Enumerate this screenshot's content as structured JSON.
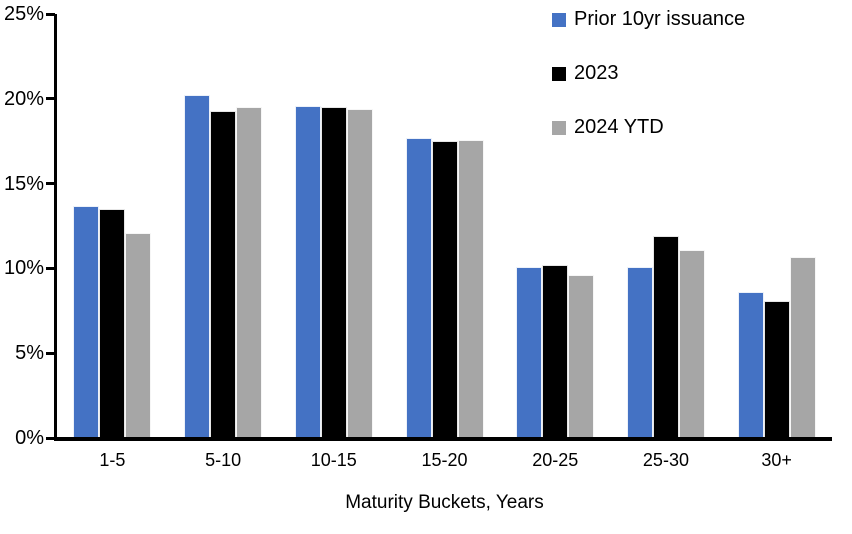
{
  "chart_data": {
    "type": "bar",
    "title": "",
    "xlabel": "Maturity Buckets, Years",
    "ylabel": "",
    "ylim": [
      0,
      25
    ],
    "ytick_step": 5,
    "ytick_labels": [
      "0%",
      "5%",
      "10%",
      "15%",
      "20%",
      "25%"
    ],
    "grid": false,
    "legend_position": "top-right",
    "axis_color": "#000000",
    "background_color": "#ffffff",
    "categories": [
      "1-5",
      "5-10",
      "10-15",
      "15-20",
      "20-25",
      "25-30",
      "30+"
    ],
    "series": [
      {
        "name": "Prior 10yr issuance",
        "color": "#4472C4",
        "values": [
          13.7,
          20.2,
          19.6,
          17.7,
          10.1,
          10.1,
          8.6
        ]
      },
      {
        "name": "2023",
        "color": "#000000",
        "values": [
          13.5,
          19.3,
          19.5,
          17.5,
          10.2,
          11.9,
          8.1
        ]
      },
      {
        "name": "2024 YTD",
        "color": "#A6A6A6",
        "values": [
          12.1,
          19.5,
          19.4,
          17.6,
          9.6,
          11.1,
          10.7
        ]
      }
    ]
  }
}
